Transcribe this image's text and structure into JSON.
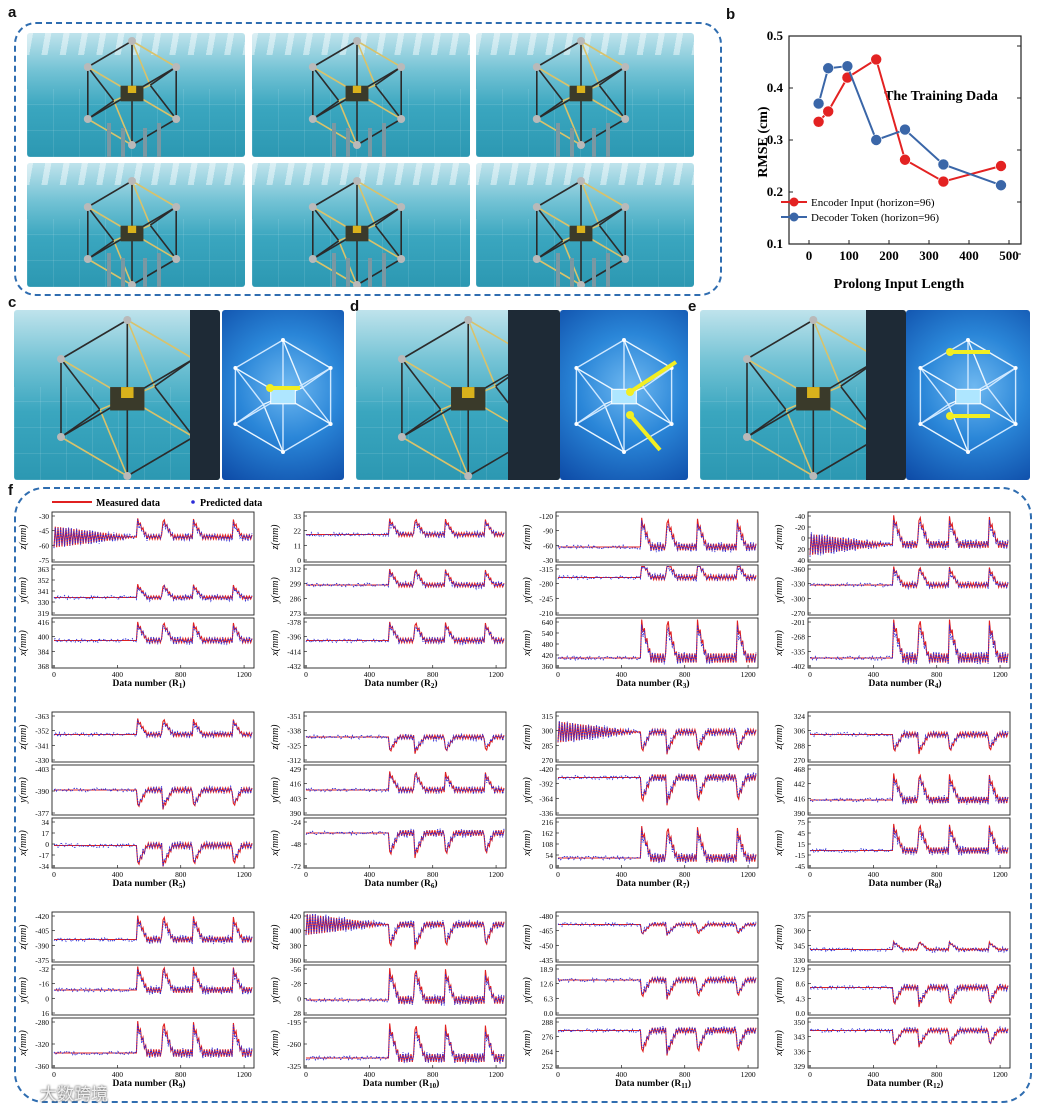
{
  "panel_labels": {
    "a": "a",
    "b": "b",
    "c": "c",
    "d": "d",
    "e": "e",
    "f": "f"
  },
  "watermark": "大数跨境",
  "panel_b": {
    "title": "The Training Dada",
    "xlabel": "Prolong Input Length",
    "ylabel": "RMSE  (cm)",
    "xlim": [
      -50,
      530
    ],
    "ylim": [
      0.1,
      0.5
    ],
    "xticks": [
      0,
      100,
      200,
      300,
      400,
      500
    ],
    "yticks": [
      0.1,
      0.2,
      0.3,
      0.4,
      0.5
    ],
    "colors": {
      "encoder": "#e32222",
      "decoder": "#3a66a8"
    }
  },
  "chart_data": [
    {
      "type": "line",
      "panel": "b",
      "title": "The Training Dada",
      "xlabel": "Prolong Input Length",
      "ylabel": "RMSE  (cm)",
      "xlim": [
        -50,
        530
      ],
      "ylim": [
        0.1,
        0.5
      ],
      "legend_position": "lower-left",
      "series": [
        {
          "name": "Encoder Input (horizon=96)",
          "x": [
            24,
            48,
            96,
            168,
            240,
            336,
            480
          ],
          "y": [
            0.335,
            0.355,
            0.42,
            0.455,
            0.262,
            0.22,
            0.25
          ]
        },
        {
          "name": "Decoder Token (horizon=96)",
          "x": [
            24,
            48,
            96,
            168,
            240,
            336,
            480
          ],
          "y": [
            0.37,
            0.438,
            0.442,
            0.3,
            0.32,
            0.253,
            0.213
          ]
        }
      ]
    },
    {
      "type": "line",
      "panel": "f",
      "legend": [
        "Measured data",
        "Predicted data"
      ],
      "colors": {
        "measured": "#e02020",
        "predicted": "#2a2ad8"
      },
      "x_ticks": [
        0,
        400,
        800,
        1200
      ],
      "subplots": [
        {
          "xlabel": "Data number (R",
          "sub": "1",
          "z_ticks": [
            "-30",
            "-45",
            "-60",
            "-75"
          ],
          "y_ticks": [
            "363",
            "352",
            "341",
            "330",
            "319"
          ],
          "x_ticks": [
            "416",
            "400",
            "384",
            "368"
          ],
          "z": {
            "base": 0.5,
            "amp": 0.35,
            "dir": 1
          },
          "y": {
            "base": 0.35,
            "amp": 0.25,
            "dir": 1
          },
          "x": {
            "base": 0.55,
            "amp": 0.35,
            "dir": 1
          }
        },
        {
          "xlabel": "Data number (R",
          "sub": "2",
          "z_ticks": [
            "33",
            "22",
            "11",
            "0"
          ],
          "y_ticks": [
            "312",
            "299",
            "286",
            "273"
          ],
          "x_ticks": [
            "-378",
            "-396",
            "-414",
            "-432"
          ],
          "z": {
            "base": 0.55,
            "amp": 0.3,
            "dir": 1
          },
          "y": {
            "base": 0.6,
            "amp": 0.3,
            "dir": 1
          },
          "x": {
            "base": 0.55,
            "amp": 0.35,
            "dir": 1
          }
        },
        {
          "xlabel": "Data number (R",
          "sub": "3",
          "z_ticks": [
            "-120",
            "-90",
            "-60",
            "-30"
          ],
          "y_ticks": [
            "-315",
            "-280",
            "-245",
            "-210"
          ],
          "x_ticks": [
            "640",
            "540",
            "480",
            "420",
            "360"
          ],
          "z": {
            "base": 0.3,
            "amp": 0.55,
            "dir": 1
          },
          "y": {
            "base": 0.75,
            "amp": 0.35,
            "dir": 1
          },
          "x": {
            "base": 0.2,
            "amp": 0.75,
            "dir": 1
          }
        },
        {
          "xlabel": "Data number (R",
          "sub": "4",
          "z_ticks": [
            "-40",
            "-20",
            "0",
            "20",
            "40"
          ],
          "y_ticks": [
            "-360",
            "-330",
            "-300",
            "-270"
          ],
          "x_ticks": [
            "-201",
            "-268",
            "-335",
            "-402"
          ],
          "z": {
            "base": 0.35,
            "amp": 0.55,
            "dir": 1
          },
          "y": {
            "base": 0.6,
            "amp": 0.35,
            "dir": 1
          },
          "x": {
            "base": 0.2,
            "amp": 0.75,
            "dir": 1
          }
        },
        {
          "xlabel": "Data number (R",
          "sub": "5",
          "z_ticks": [
            "-363",
            "-352",
            "-341",
            "-330"
          ],
          "y_ticks": [
            "-403",
            "-390",
            "-377"
          ],
          "x_ticks": [
            "34",
            "17",
            "0",
            "-17",
            "-34"
          ],
          "z": {
            "base": 0.55,
            "amp": 0.3,
            "dir": 1
          },
          "y": {
            "base": 0.5,
            "amp": 0.35,
            "dir": -1
          },
          "x": {
            "base": 0.45,
            "amp": 0.4,
            "dir": -1
          }
        },
        {
          "xlabel": "Data number (R",
          "sub": "6",
          "z_ticks": [
            "-351",
            "-338",
            "-325",
            "-312"
          ],
          "y_ticks": [
            "429",
            "416",
            "403",
            "390"
          ],
          "x_ticks": [
            "-24",
            "-48",
            "-72"
          ],
          "z": {
            "base": 0.5,
            "amp": 0.3,
            "dir": -1
          },
          "y": {
            "base": 0.5,
            "amp": 0.35,
            "dir": 1
          },
          "x": {
            "base": 0.7,
            "amp": 0.45,
            "dir": -1
          }
        },
        {
          "xlabel": "Data number (R",
          "sub": "7",
          "z_ticks": [
            "315",
            "300",
            "285",
            "270"
          ],
          "y_ticks": [
            "-420",
            "-392",
            "-364",
            "-336"
          ],
          "x_ticks": [
            "216",
            "162",
            "108",
            "54",
            "0"
          ],
          "z": {
            "base": 0.6,
            "amp": 0.4,
            "dir": -1
          },
          "y": {
            "base": 0.75,
            "amp": 0.5,
            "dir": -1
          },
          "x": {
            "base": 0.2,
            "amp": 0.6,
            "dir": 1
          }
        },
        {
          "xlabel": "Data number (R",
          "sub": "8",
          "z_ticks": [
            "324",
            "306",
            "288",
            "270"
          ],
          "y_ticks": [
            "468",
            "442",
            "416",
            "390"
          ],
          "x_ticks": [
            "75",
            "45",
            "15",
            "-15",
            "-45"
          ],
          "z": {
            "base": 0.55,
            "amp": 0.35,
            "dir": -1
          },
          "y": {
            "base": 0.3,
            "amp": 0.5,
            "dir": 1
          },
          "x": {
            "base": 0.35,
            "amp": 0.5,
            "dir": 1
          }
        },
        {
          "xlabel": "Data number (R",
          "sub": "9",
          "z_ticks": [
            "-420",
            "-405",
            "-390",
            "-375"
          ],
          "y_ticks": [
            "-32",
            "-16",
            "0",
            "16"
          ],
          "x_ticks": [
            "-280",
            "-320",
            "-360"
          ],
          "z": {
            "base": 0.45,
            "amp": 0.45,
            "dir": 1
          },
          "y": {
            "base": 0.5,
            "amp": 0.45,
            "dir": 1
          },
          "x": {
            "base": 0.3,
            "amp": 0.6,
            "dir": 1
          }
        },
        {
          "xlabel": "Data number (R",
          "sub": "10",
          "z_ticks": [
            "420",
            "400",
            "380",
            "360"
          ],
          "y_ticks": [
            "-56",
            "-28",
            "0",
            "28"
          ],
          "x_ticks": [
            "-195",
            "-260",
            "-325"
          ],
          "z": {
            "base": 0.75,
            "amp": 0.45,
            "dir": -1
          },
          "y": {
            "base": 0.3,
            "amp": 0.6,
            "dir": 1
          },
          "x": {
            "base": 0.2,
            "amp": 0.65,
            "dir": 1
          }
        },
        {
          "xlabel": "Data number (R",
          "sub": "11",
          "z_ticks": [
            "-480",
            "-465",
            "-450",
            "-435"
          ],
          "y_ticks": [
            "18.9",
            "12.6",
            "6.3",
            "0.0"
          ],
          "x_ticks": [
            "288",
            "276",
            "264",
            "252"
          ],
          "z": {
            "base": 0.75,
            "amp": 0.2,
            "dir": -1
          },
          "y": {
            "base": 0.7,
            "amp": 0.35,
            "dir": -1
          },
          "x": {
            "base": 0.75,
            "amp": 0.45,
            "dir": -1
          }
        },
        {
          "xlabel": "Data number (R",
          "sub": "12",
          "z_ticks": [
            "375",
            "360",
            "345",
            "330"
          ],
          "y_ticks": [
            "12.9",
            "8.6",
            "4.3",
            "0.0"
          ],
          "x_ticks": [
            "350",
            "343",
            "336",
            "329"
          ],
          "z": {
            "base": 0.25,
            "amp": 0.15,
            "dir": 1
          },
          "y": {
            "base": 0.55,
            "amp": 0.35,
            "dir": -1
          },
          "x": {
            "base": 0.75,
            "amp": 0.3,
            "dir": -1
          }
        }
      ]
    }
  ]
}
